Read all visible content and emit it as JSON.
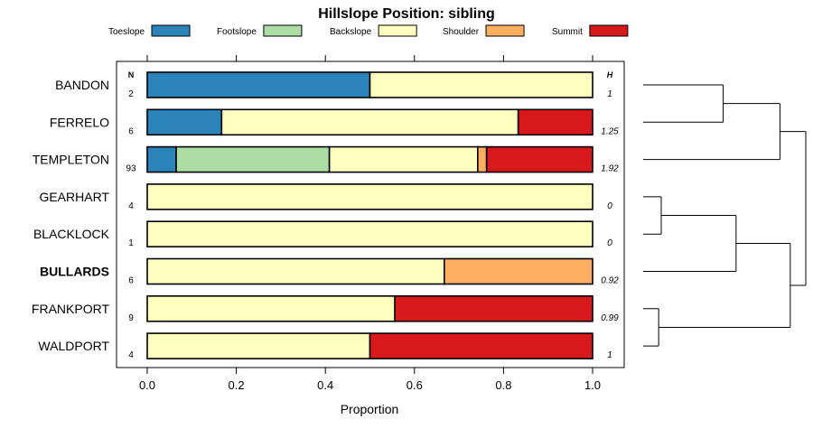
{
  "chart_data": {
    "type": "bar",
    "stacked": true,
    "orientation": "horizontal",
    "title": "Hillslope Position: sibling",
    "xlabel": "Proportion",
    "xlim": [
      0,
      1
    ],
    "xticks": [
      "0.0",
      "0.2",
      "0.4",
      "0.6",
      "0.8",
      "1.0"
    ],
    "n_header": "N",
    "h_header": "H",
    "legend_position": "top",
    "legend": [
      {
        "label": "Toeslope",
        "color": "#2B83BA"
      },
      {
        "label": "Footslope",
        "color": "#ABDDA4"
      },
      {
        "label": "Backslope",
        "color": "#FFFFBF"
      },
      {
        "label": "Shoulder",
        "color": "#FDAE61"
      },
      {
        "label": "Summit",
        "color": "#D7191C"
      }
    ],
    "series": [
      {
        "name": "Toeslope",
        "values": [
          0.5,
          0.167,
          0.065,
          0,
          0,
          0,
          0,
          0
        ]
      },
      {
        "name": "Footslope",
        "values": [
          0,
          0,
          0.344,
          0,
          0,
          0,
          0,
          0
        ]
      },
      {
        "name": "Backslope",
        "values": [
          0.5,
          0.666,
          0.333,
          1.0,
          1.0,
          0.667,
          0.556,
          0.5
        ]
      },
      {
        "name": "Shoulder",
        "values": [
          0,
          0,
          0.02,
          0,
          0,
          0.333,
          0,
          0
        ]
      },
      {
        "name": "Summit",
        "values": [
          0,
          0.167,
          0.238,
          0,
          0,
          0,
          0.444,
          0.5
        ]
      }
    ],
    "rows": [
      {
        "label": "BANDON",
        "n": "2",
        "h": "1",
        "bold": false
      },
      {
        "label": "FERRELO",
        "n": "6",
        "h": "1.25",
        "bold": false
      },
      {
        "label": "TEMPLETON",
        "n": "93",
        "h": "1.92",
        "bold": false
      },
      {
        "label": "GEARHART",
        "n": "4",
        "h": "0",
        "bold": false
      },
      {
        "label": "BLACKLOCK",
        "n": "1",
        "h": "0",
        "bold": false
      },
      {
        "label": "BULLARDS",
        "n": "6",
        "h": "0.92",
        "bold": true
      },
      {
        "label": "FRANKPORT",
        "n": "9",
        "h": "0.99",
        "bold": false
      },
      {
        "label": "WALDPORT",
        "n": "4",
        "h": "1",
        "bold": false
      }
    ],
    "dendrogram": {
      "nodes": [
        {
          "left": 0,
          "right": 1,
          "height": 0.31
        },
        {
          "left": 6,
          "right": 7,
          "height": 0.06
        },
        {
          "left": 3,
          "right": 4,
          "height": 0.07
        },
        {
          "left": "n0",
          "right": 2,
          "height": 0.53
        },
        {
          "left": "n2",
          "right": 5,
          "height": 0.36
        },
        {
          "left": "n4",
          "right": "n1",
          "height": 0.57
        },
        {
          "left": "n3",
          "right": "n5",
          "height": 0.63
        }
      ]
    }
  }
}
